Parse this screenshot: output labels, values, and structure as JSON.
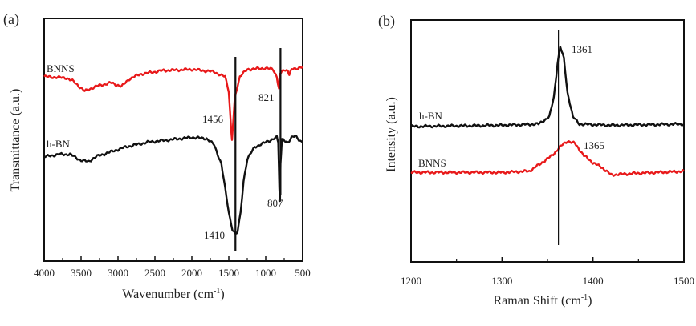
{
  "chart_data": [
    {
      "type": "line",
      "panel_label": "(a)",
      "title": "",
      "xlabel": "Wavenumber (cm",
      "xlabel_sup": "-1",
      "xlabel_end": ")",
      "ylabel": "Transmittance (a.u.)",
      "xlim": [
        4000,
        500
      ],
      "x_reversed": true,
      "ylim": [
        0,
        100
      ],
      "xticks": [
        "4000",
        "3500",
        "3000",
        "2500",
        "2000",
        "1500",
        "1000",
        "500"
      ],
      "xtick_values": [
        4000,
        3500,
        3000,
        2500,
        2000,
        1500,
        1000,
        500
      ],
      "grid": false,
      "series": [
        {
          "name": "BNNS",
          "color": "#e8191a",
          "points": [
            [
              4000,
              76
            ],
            [
              3700,
              75.5
            ],
            [
              3600,
              74
            ],
            [
              3450,
              70
            ],
            [
              3300,
              72
            ],
            [
              3100,
              73.5
            ],
            [
              2950,
              72
            ],
            [
              2850,
              75
            ],
            [
              2700,
              77
            ],
            [
              2400,
              78.5
            ],
            [
              2000,
              79
            ],
            [
              1700,
              78
            ],
            [
              1600,
              76.5
            ],
            [
              1550,
              76
            ],
            [
              1500,
              70
            ],
            [
              1470,
              55
            ],
            [
              1456,
              50
            ],
            [
              1440,
              57
            ],
            [
              1420,
              67
            ],
            [
              1400,
              70
            ],
            [
              1350,
              76
            ],
            [
              1250,
              79
            ],
            [
              1000,
              79.5
            ],
            [
              900,
              79
            ],
            [
              850,
              76
            ],
            [
              821,
              71
            ],
            [
              810,
              77
            ],
            [
              750,
              79
            ],
            [
              700,
              78.5
            ],
            [
              680,
              76.5
            ],
            [
              650,
              79
            ],
            [
              500,
              80
            ]
          ]
        },
        {
          "name": "h-BN",
          "color": "#111111",
          "points": [
            [
              4000,
              43
            ],
            [
              3800,
              44
            ],
            [
              3650,
              44
            ],
            [
              3500,
              41.5
            ],
            [
              3400,
              41
            ],
            [
              3300,
              43
            ],
            [
              3100,
              45
            ],
            [
              2900,
              47
            ],
            [
              2600,
              49
            ],
            [
              2300,
              50
            ],
            [
              2000,
              51
            ],
            [
              1800,
              50.5
            ],
            [
              1700,
              48
            ],
            [
              1600,
              40
            ],
            [
              1550,
              30
            ],
            [
              1500,
              20
            ],
            [
              1450,
              13
            ],
            [
              1410,
              11
            ],
            [
              1380,
              12
            ],
            [
              1340,
              20
            ],
            [
              1300,
              33
            ],
            [
              1250,
              42
            ],
            [
              1150,
              47
            ],
            [
              1000,
              49
            ],
            [
              850,
              51
            ],
            [
              830,
              49
            ],
            [
              815,
              30
            ],
            [
              807,
              25
            ],
            [
              800,
              40
            ],
            [
              780,
              50
            ],
            [
              700,
              49
            ],
            [
              650,
              51
            ],
            [
              600,
              51.5
            ],
            [
              550,
              50
            ],
            [
              500,
              49
            ]
          ]
        }
      ],
      "annotations": [
        "1456",
        "821",
        "1410",
        "807"
      ],
      "marker_lines": [
        1410,
        800
      ]
    },
    {
      "type": "line",
      "panel_label": "(b)",
      "title": "",
      "xlabel": "Raman Shift (cm",
      "xlabel_sup": "-1",
      "xlabel_end": ")",
      "ylabel": "Intensity (a.u.)",
      "xlim": [
        1200,
        1500
      ],
      "ylim": [
        0,
        100
      ],
      "xticks": [
        "1200",
        "1300",
        "1400",
        "1500"
      ],
      "xtick_values": [
        1200,
        1300,
        1400,
        1500
      ],
      "grid": false,
      "series": [
        {
          "name": "h-BN",
          "color": "#111111",
          "points": [
            [
              1200,
              56
            ],
            [
              1300,
              56.5
            ],
            [
              1340,
              57
            ],
            [
              1352,
              60
            ],
            [
              1357,
              68
            ],
            [
              1361,
              82
            ],
            [
              1364,
              89
            ],
            [
              1368,
              84
            ],
            [
              1372,
              70
            ],
            [
              1378,
              60
            ],
            [
              1385,
              57
            ],
            [
              1420,
              56.5
            ],
            [
              1500,
              57
            ]
          ]
        },
        {
          "name": "BNNS",
          "color": "#e8191a",
          "points": [
            [
              1200,
              37
            ],
            [
              1300,
              37
            ],
            [
              1330,
              37.5
            ],
            [
              1340,
              40
            ],
            [
              1355,
              44
            ],
            [
              1365,
              48
            ],
            [
              1372,
              50
            ],
            [
              1380,
              49
            ],
            [
              1390,
              44
            ],
            [
              1400,
              41
            ],
            [
              1410,
              39
            ],
            [
              1420,
              36
            ],
            [
              1440,
              36.5
            ],
            [
              1500,
              37.5
            ]
          ]
        }
      ],
      "annotations": [
        "1361",
        "1365"
      ],
      "marker_lines": [
        1362
      ]
    }
  ]
}
